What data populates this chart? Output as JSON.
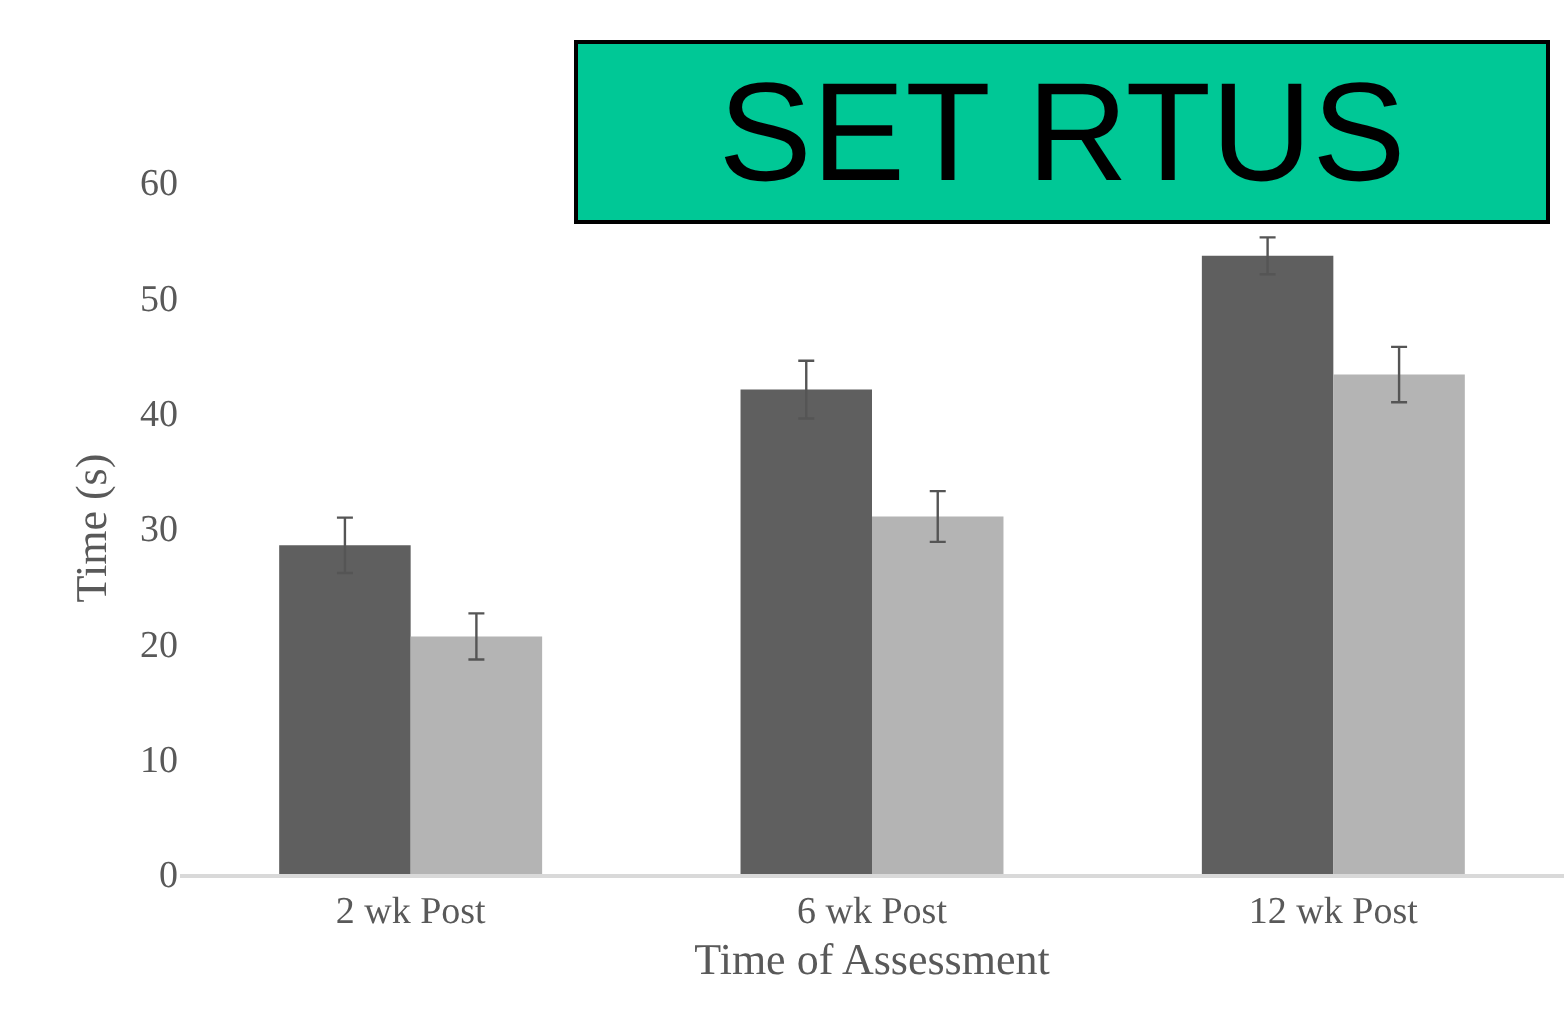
{
  "chart_data": {
    "type": "bar",
    "title": "SET RTUS",
    "xlabel": "Time of Assessment",
    "ylabel": "Time (s)",
    "categories": [
      "2 wk Post",
      "6 wk Post",
      "12 wk Post"
    ],
    "series": [
      {
        "color": "#5f5f5f",
        "values": [
          28.5,
          42,
          53.6
        ],
        "errors": [
          2.4,
          2.5,
          1.6
        ]
      },
      {
        "color": "#b4b4b4",
        "values": [
          20.6,
          31,
          43.3
        ],
        "errors": [
          2,
          2.2,
          2.4
        ]
      }
    ],
    "ylim": [
      0,
      60
    ],
    "yticks": [
      0,
      10,
      20,
      30,
      40,
      50,
      60
    ],
    "grid": false,
    "legend": false
  }
}
